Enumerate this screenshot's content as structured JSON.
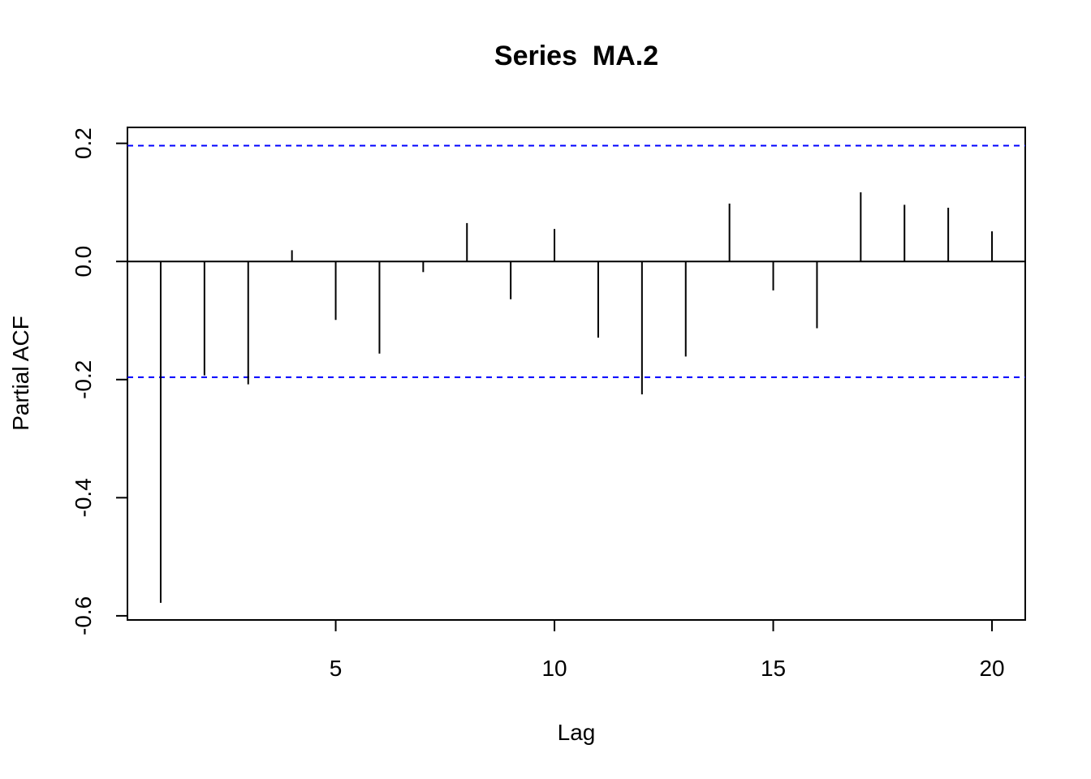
{
  "chart_data": {
    "type": "bar",
    "title": "Series  MA.2",
    "xlabel": "Lag",
    "ylabel": "Partial ACF",
    "xlim": [
      0.24,
      20.76
    ],
    "ylim": [
      -0.607,
      0.227
    ],
    "x_ticks": [
      5,
      10,
      15,
      20
    ],
    "y_ticks": [
      0.2,
      0.0,
      -0.2,
      -0.4,
      -0.6
    ],
    "y_tick_labels": [
      "0.2",
      "0.0",
      "-0.2",
      "-0.4",
      "-0.6"
    ],
    "x_tick_labels": [
      "5",
      "10",
      "15",
      "20"
    ],
    "lags": [
      1,
      2,
      3,
      4,
      5,
      6,
      7,
      8,
      9,
      10,
      11,
      12,
      13,
      14,
      15,
      16,
      17,
      18,
      19,
      20
    ],
    "values": [
      -0.578,
      -0.193,
      -0.208,
      0.019,
      -0.099,
      -0.156,
      -0.018,
      0.065,
      -0.064,
      0.055,
      -0.129,
      -0.225,
      -0.161,
      0.098,
      -0.049,
      -0.113,
      0.117,
      0.096,
      0.091,
      0.051
    ],
    "confidence_bound": 0.196,
    "grid": false,
    "colors": {
      "bars": "#000000",
      "ci_line": "#0000ff",
      "axis": "#000000"
    }
  }
}
